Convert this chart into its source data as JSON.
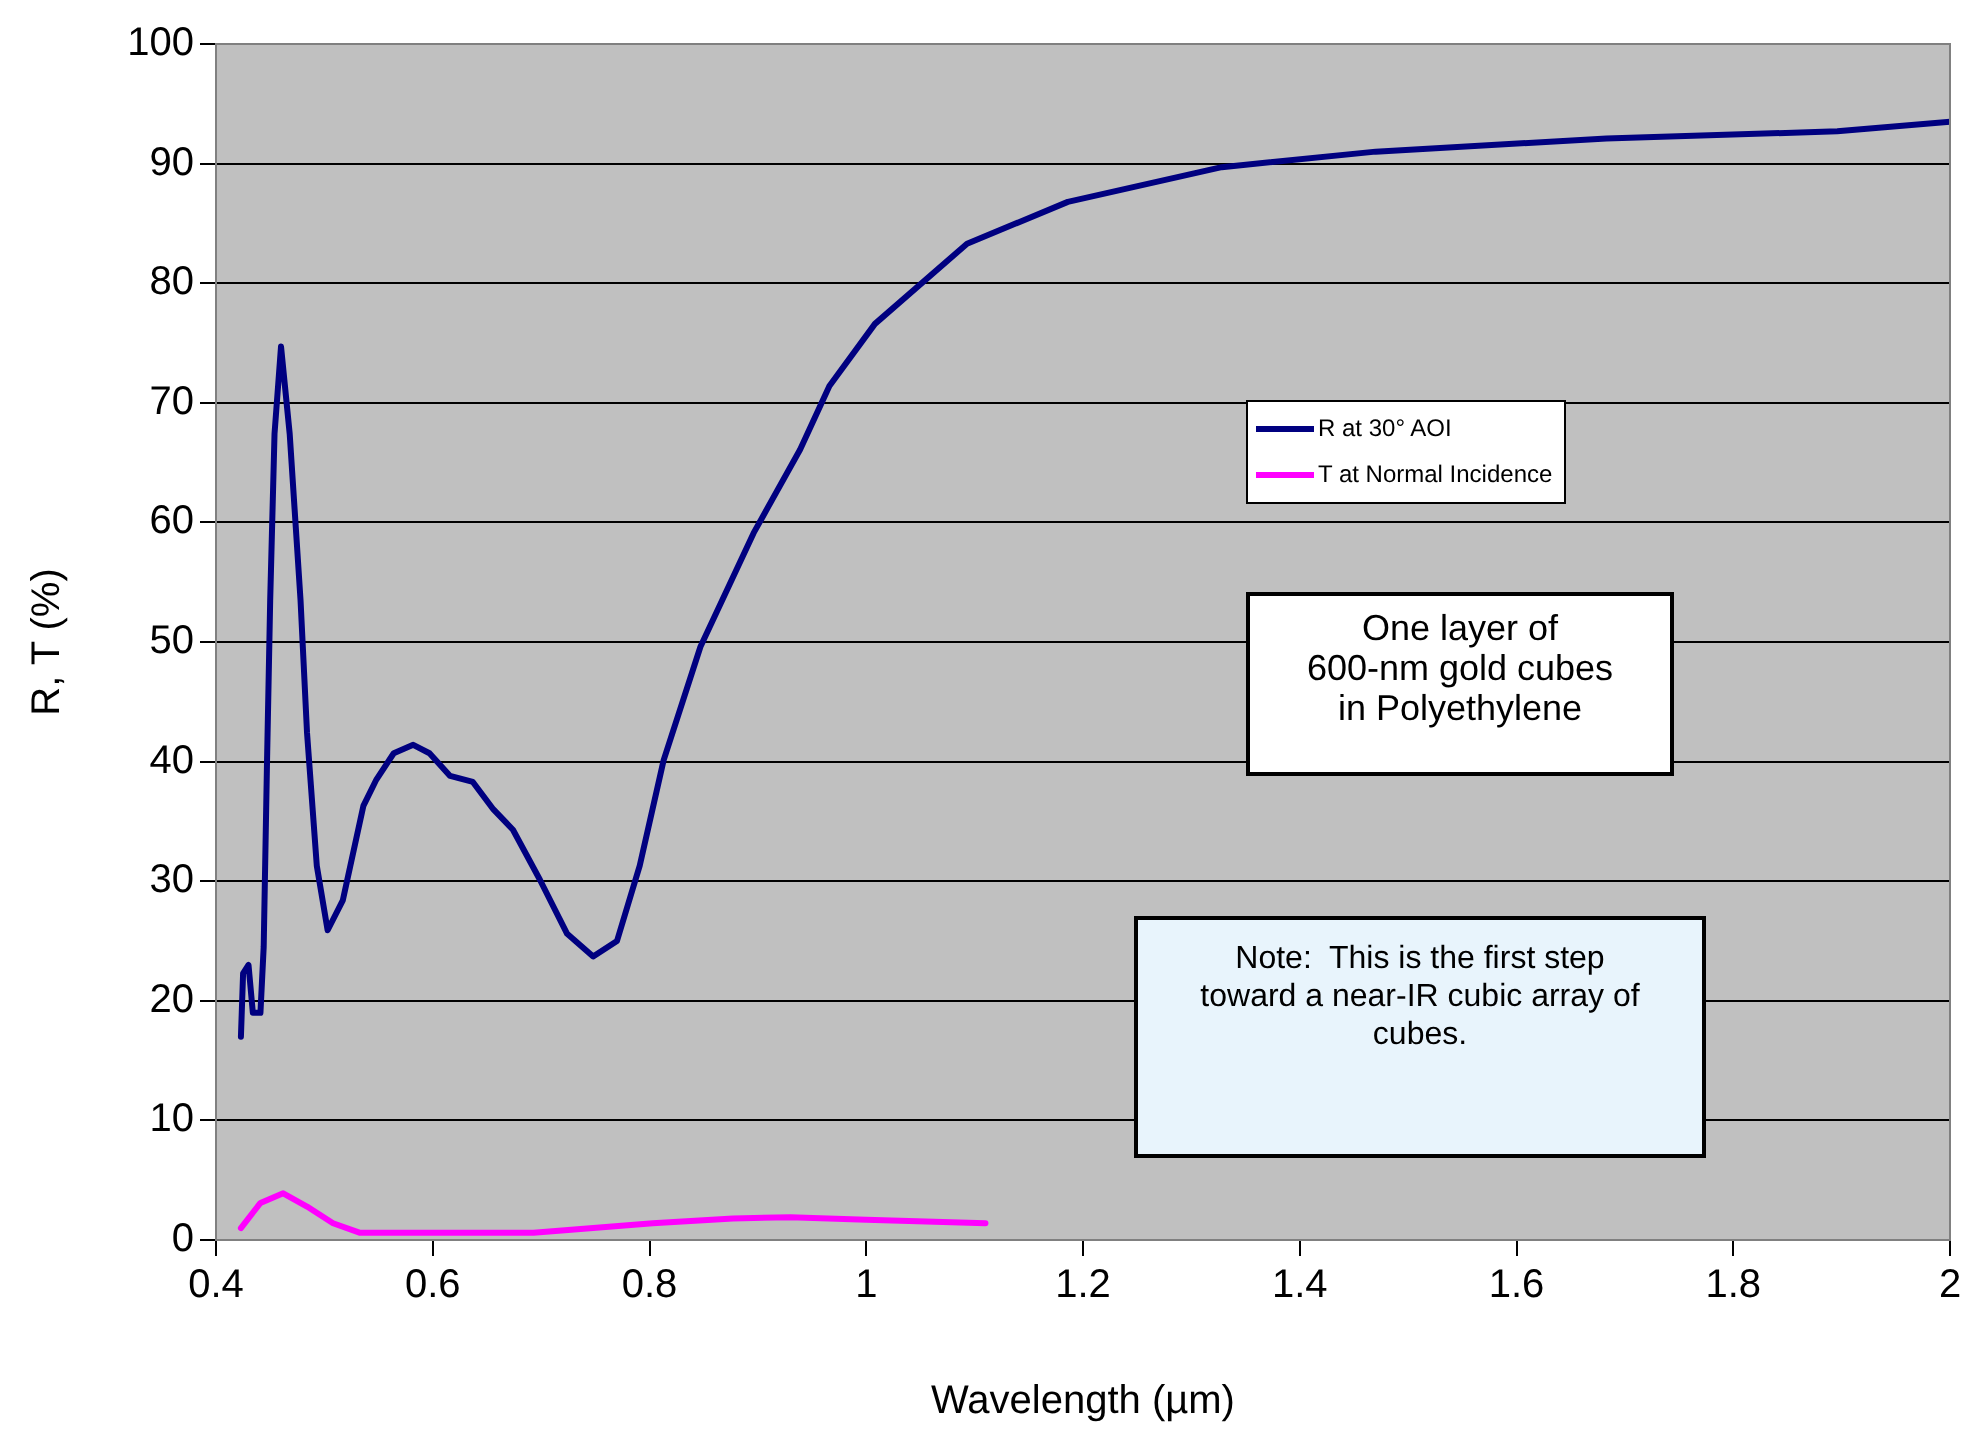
{
  "chart_data": {
    "type": "line",
    "xlabel": "Wavelength (µm)",
    "ylabel": "R, T (%)",
    "xlim": [
      0.4,
      2
    ],
    "xticks": [
      0.4,
      0.6,
      0.8,
      1,
      1.2,
      1.4,
      1.6,
      1.8,
      2
    ],
    "ylim": [
      0,
      100
    ],
    "yticks": [
      0,
      10,
      20,
      30,
      40,
      50,
      60,
      70,
      80,
      90,
      100
    ],
    "grid": "y",
    "legend": "right",
    "marker": "none",
    "line_style": "solid",
    "annotations": [
      "One layer of\n600-nm gold cubes\nin Polyethylene",
      "Note:  This is the first step\ntoward a near-IR cubic array of\ncubes."
    ],
    "series": [
      {
        "name": "R at 30° AOI",
        "color": "#000080",
        "x": [
          0.423,
          0.425,
          0.43,
          0.434,
          0.441,
          0.444,
          0.447,
          0.45,
          0.454,
          0.46,
          0.468,
          0.478,
          0.484,
          0.493,
          0.503,
          0.517,
          0.536,
          0.548,
          0.564,
          0.582,
          0.597,
          0.616,
          0.637,
          0.656,
          0.674,
          0.699,
          0.724,
          0.748,
          0.77,
          0.791,
          0.813,
          0.847,
          0.896,
          0.939,
          0.966,
          1.008,
          1.093,
          1.186,
          1.328,
          1.47,
          1.683,
          1.896,
          2.0
        ],
        "values": [
          17,
          22.3,
          23,
          19,
          19,
          24.5,
          39.6,
          53.5,
          67.4,
          74.7,
          67.4,
          53.5,
          42.4,
          31.3,
          25.9,
          28.4,
          36.3,
          38.5,
          40.7,
          41.4,
          40.7,
          38.8,
          38.3,
          36,
          34.3,
          30.1,
          25.6,
          23.7,
          25,
          31.3,
          40.1,
          49.6,
          59.1,
          66.1,
          71.4,
          76.6,
          83.3,
          86.8,
          89.7,
          91,
          92.1,
          92.7,
          93.5
        ]
      },
      {
        "name": "T at Normal Incidence",
        "color": "#ff00ff",
        "x": [
          0.423,
          0.441,
          0.462,
          0.484,
          0.508,
          0.533,
          0.693,
          0.803,
          0.877,
          0.93,
          1.0,
          1.11
        ],
        "values": [
          1,
          3.1,
          3.9,
          2.8,
          1.4,
          0.6,
          0.6,
          1.4,
          1.8,
          1.9,
          1.7,
          1.4
        ]
      }
    ]
  }
}
